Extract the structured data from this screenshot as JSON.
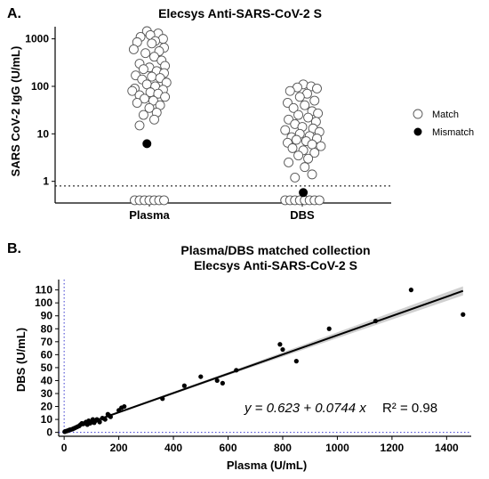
{
  "chart_data": [
    {
      "type": "scatter",
      "panel_label": "A.",
      "title": "Elecsys Anti-SARS-CoV-2 S",
      "xlabel": "",
      "ylabel": "SARS CoV-2 IgG (U/mL)",
      "y_scale": "log",
      "ylim": [
        0.35,
        1800
      ],
      "y_ticks": [
        "1",
        "10",
        "100",
        "1000"
      ],
      "y_tick_values": [
        1,
        10,
        100,
        1000
      ],
      "categories": [
        "Plasma",
        "DBS"
      ],
      "reference_line": 0.8,
      "legend": {
        "position": "right",
        "entries": [
          "Match",
          "Mismatch"
        ]
      },
      "colors": {
        "match_fill": "#ffffff",
        "match_stroke": "#555555",
        "mismatch_fill": "#000000"
      },
      "series": [
        {
          "name": "Match",
          "points": [
            {
              "c": 0,
              "j": -0.05,
              "y": 1450
            },
            {
              "c": 0,
              "j": 0.18,
              "y": 1300
            },
            {
              "c": 0,
              "j": 0.02,
              "y": 1200
            },
            {
              "c": 0,
              "j": -0.18,
              "y": 1100
            },
            {
              "c": 0,
              "j": 0.28,
              "y": 1000
            },
            {
              "c": 0,
              "j": 0.12,
              "y": 900
            },
            {
              "c": 0,
              "j": -0.25,
              "y": 850
            },
            {
              "c": 0,
              "j": 0.05,
              "y": 800
            },
            {
              "c": 0,
              "j": 0.3,
              "y": 650
            },
            {
              "c": 0,
              "j": -0.32,
              "y": 600
            },
            {
              "c": 0,
              "j": 0.2,
              "y": 550
            },
            {
              "c": 0,
              "j": -0.08,
              "y": 500
            },
            {
              "c": 0,
              "j": 0.1,
              "y": 420
            },
            {
              "c": 0,
              "j": 0.25,
              "y": 350
            },
            {
              "c": 0,
              "j": -0.2,
              "y": 300
            },
            {
              "c": 0,
              "j": 0.32,
              "y": 270
            },
            {
              "c": 0,
              "j": 0.0,
              "y": 250
            },
            {
              "c": 0,
              "j": -0.12,
              "y": 230
            },
            {
              "c": 0,
              "j": 0.15,
              "y": 210
            },
            {
              "c": 0,
              "j": 0.3,
              "y": 190
            },
            {
              "c": 0,
              "j": -0.28,
              "y": 170
            },
            {
              "c": 0,
              "j": 0.05,
              "y": 160
            },
            {
              "c": 0,
              "j": 0.22,
              "y": 150
            },
            {
              "c": 0,
              "j": -0.15,
              "y": 140
            },
            {
              "c": 0,
              "j": 0.35,
              "y": 120
            },
            {
              "c": 0,
              "j": -0.05,
              "y": 110
            },
            {
              "c": 0,
              "j": 0.12,
              "y": 100
            },
            {
              "c": 0,
              "j": -0.3,
              "y": 90
            },
            {
              "c": 0,
              "j": 0.28,
              "y": 85
            },
            {
              "c": 0,
              "j": -0.35,
              "y": 80
            },
            {
              "c": 0,
              "j": 0.02,
              "y": 75
            },
            {
              "c": 0,
              "j": 0.18,
              "y": 70
            },
            {
              "c": 0,
              "j": -0.2,
              "y": 65
            },
            {
              "c": 0,
              "j": 0.32,
              "y": 60
            },
            {
              "c": 0,
              "j": -0.1,
              "y": 55
            },
            {
              "c": 0,
              "j": 0.08,
              "y": 50
            },
            {
              "c": 0,
              "j": -0.25,
              "y": 45
            },
            {
              "c": 0,
              "j": 0.22,
              "y": 40
            },
            {
              "c": 0,
              "j": 0.0,
              "y": 35
            },
            {
              "c": 0,
              "j": 0.15,
              "y": 28
            },
            {
              "c": 0,
              "j": -0.12,
              "y": 25
            },
            {
              "c": 0,
              "j": 0.1,
              "y": 20
            },
            {
              "c": 0,
              "j": -0.2,
              "y": 15
            },
            {
              "c": 0,
              "j": -0.3,
              "y": 0.4
            },
            {
              "c": 0,
              "j": -0.2,
              "y": 0.4
            },
            {
              "c": 0,
              "j": -0.1,
              "y": 0.4
            },
            {
              "c": 0,
              "j": 0.0,
              "y": 0.4
            },
            {
              "c": 0,
              "j": 0.1,
              "y": 0.4
            },
            {
              "c": 0,
              "j": 0.2,
              "y": 0.4
            },
            {
              "c": 0,
              "j": 0.3,
              "y": 0.4
            },
            {
              "c": 1,
              "j": 0.02,
              "y": 110
            },
            {
              "c": 1,
              "j": 0.18,
              "y": 100
            },
            {
              "c": 1,
              "j": -0.1,
              "y": 95
            },
            {
              "c": 1,
              "j": 0.3,
              "y": 90
            },
            {
              "c": 1,
              "j": -0.25,
              "y": 80
            },
            {
              "c": 1,
              "j": 0.1,
              "y": 70
            },
            {
              "c": 1,
              "j": -0.05,
              "y": 60
            },
            {
              "c": 1,
              "j": 0.25,
              "y": 50
            },
            {
              "c": 1,
              "j": -0.3,
              "y": 45
            },
            {
              "c": 1,
              "j": 0.05,
              "y": 40
            },
            {
              "c": 1,
              "j": -0.18,
              "y": 35
            },
            {
              "c": 1,
              "j": 0.2,
              "y": 30
            },
            {
              "c": 1,
              "j": 0.32,
              "y": 27
            },
            {
              "c": 1,
              "j": -0.08,
              "y": 25
            },
            {
              "c": 1,
              "j": 0.12,
              "y": 22
            },
            {
              "c": 1,
              "j": -0.28,
              "y": 20
            },
            {
              "c": 1,
              "j": 0.28,
              "y": 18
            },
            {
              "c": 1,
              "j": -0.15,
              "y": 16
            },
            {
              "c": 1,
              "j": 0.0,
              "y": 14
            },
            {
              "c": 1,
              "j": 0.22,
              "y": 13
            },
            {
              "c": 1,
              "j": -0.35,
              "y": 12
            },
            {
              "c": 1,
              "j": 0.35,
              "y": 11
            },
            {
              "c": 1,
              "j": -0.05,
              "y": 10
            },
            {
              "c": 1,
              "j": 0.15,
              "y": 9
            },
            {
              "c": 1,
              "j": -0.22,
              "y": 8.5
            },
            {
              "c": 1,
              "j": 0.3,
              "y": 8
            },
            {
              "c": 1,
              "j": -0.12,
              "y": 7.5
            },
            {
              "c": 1,
              "j": 0.08,
              "y": 7
            },
            {
              "c": 1,
              "j": -0.3,
              "y": 6.5
            },
            {
              "c": 1,
              "j": 0.2,
              "y": 6
            },
            {
              "c": 1,
              "j": 0.38,
              "y": 5.5
            },
            {
              "c": 1,
              "j": -0.2,
              "y": 5
            },
            {
              "c": 1,
              "j": 0.02,
              "y": 4.5
            },
            {
              "c": 1,
              "j": 0.25,
              "y": 4
            },
            {
              "c": 1,
              "j": -0.08,
              "y": 3.5
            },
            {
              "c": 1,
              "j": 0.12,
              "y": 3
            },
            {
              "c": 1,
              "j": -0.28,
              "y": 2.5
            },
            {
              "c": 1,
              "j": 0.05,
              "y": 2
            },
            {
              "c": 1,
              "j": 0.2,
              "y": 1.4
            },
            {
              "c": 1,
              "j": -0.15,
              "y": 1.2
            },
            {
              "c": 1,
              "j": -0.35,
              "y": 0.4
            },
            {
              "c": 1,
              "j": -0.25,
              "y": 0.4
            },
            {
              "c": 1,
              "j": -0.15,
              "y": 0.4
            },
            {
              "c": 1,
              "j": -0.05,
              "y": 0.4
            },
            {
              "c": 1,
              "j": 0.05,
              "y": 0.4
            },
            {
              "c": 1,
              "j": 0.15,
              "y": 0.4
            },
            {
              "c": 1,
              "j": 0.25,
              "y": 0.4
            },
            {
              "c": 1,
              "j": 0.35,
              "y": 0.4
            }
          ]
        },
        {
          "name": "Mismatch",
          "points": [
            {
              "c": 0,
              "j": -0.05,
              "y": 6.2
            },
            {
              "c": 1,
              "j": 0.02,
              "y": 0.58
            }
          ]
        }
      ]
    },
    {
      "type": "scatter",
      "panel_label": "B.",
      "title_lines": [
        "Plasma/DBS matched collection",
        "Elecsys Anti-SARS-CoV-2 S"
      ],
      "xlabel": "Plasma (U/mL)",
      "ylabel": "DBS (U/mL)",
      "xlim": [
        -20,
        1490
      ],
      "ylim": [
        -3,
        118
      ],
      "x_ticks": [
        0,
        200,
        400,
        600,
        800,
        1000,
        1200,
        1400
      ],
      "y_ticks": [
        0,
        10,
        20,
        30,
        40,
        50,
        60,
        70,
        80,
        90,
        100,
        110
      ],
      "fit": {
        "intercept": 0.623,
        "slope": 0.0744,
        "equation": "y = 0.623 + 0.0744 x",
        "r2_label": "R² = 0.98"
      },
      "points": [
        [
          2,
          0.5
        ],
        [
          5,
          0.8
        ],
        [
          8,
          1
        ],
        [
          12,
          1.2
        ],
        [
          15,
          1.5
        ],
        [
          20,
          2
        ],
        [
          25,
          2.2
        ],
        [
          30,
          2.5
        ],
        [
          35,
          3
        ],
        [
          40,
          3.5
        ],
        [
          45,
          4
        ],
        [
          50,
          4.5
        ],
        [
          55,
          5
        ],
        [
          60,
          6
        ],
        [
          65,
          7
        ],
        [
          70,
          6.5
        ],
        [
          75,
          7
        ],
        [
          80,
          8
        ],
        [
          85,
          6
        ],
        [
          90,
          9
        ],
        [
          95,
          7
        ],
        [
          100,
          8
        ],
        [
          105,
          10
        ],
        [
          110,
          7.5
        ],
        [
          115,
          9
        ],
        [
          120,
          10
        ],
        [
          130,
          8
        ],
        [
          140,
          11
        ],
        [
          150,
          10
        ],
        [
          160,
          14
        ],
        [
          165,
          13
        ],
        [
          170,
          12
        ],
        [
          200,
          17
        ],
        [
          210,
          19
        ],
        [
          220,
          20
        ],
        [
          360,
          26
        ],
        [
          440,
          36
        ],
        [
          500,
          43
        ],
        [
          560,
          40
        ],
        [
          580,
          38
        ],
        [
          630,
          48
        ],
        [
          790,
          68
        ],
        [
          800,
          64
        ],
        [
          850,
          55
        ],
        [
          970,
          80
        ],
        [
          1140,
          86
        ],
        [
          1270,
          110
        ],
        [
          1460,
          91
        ]
      ]
    }
  ]
}
